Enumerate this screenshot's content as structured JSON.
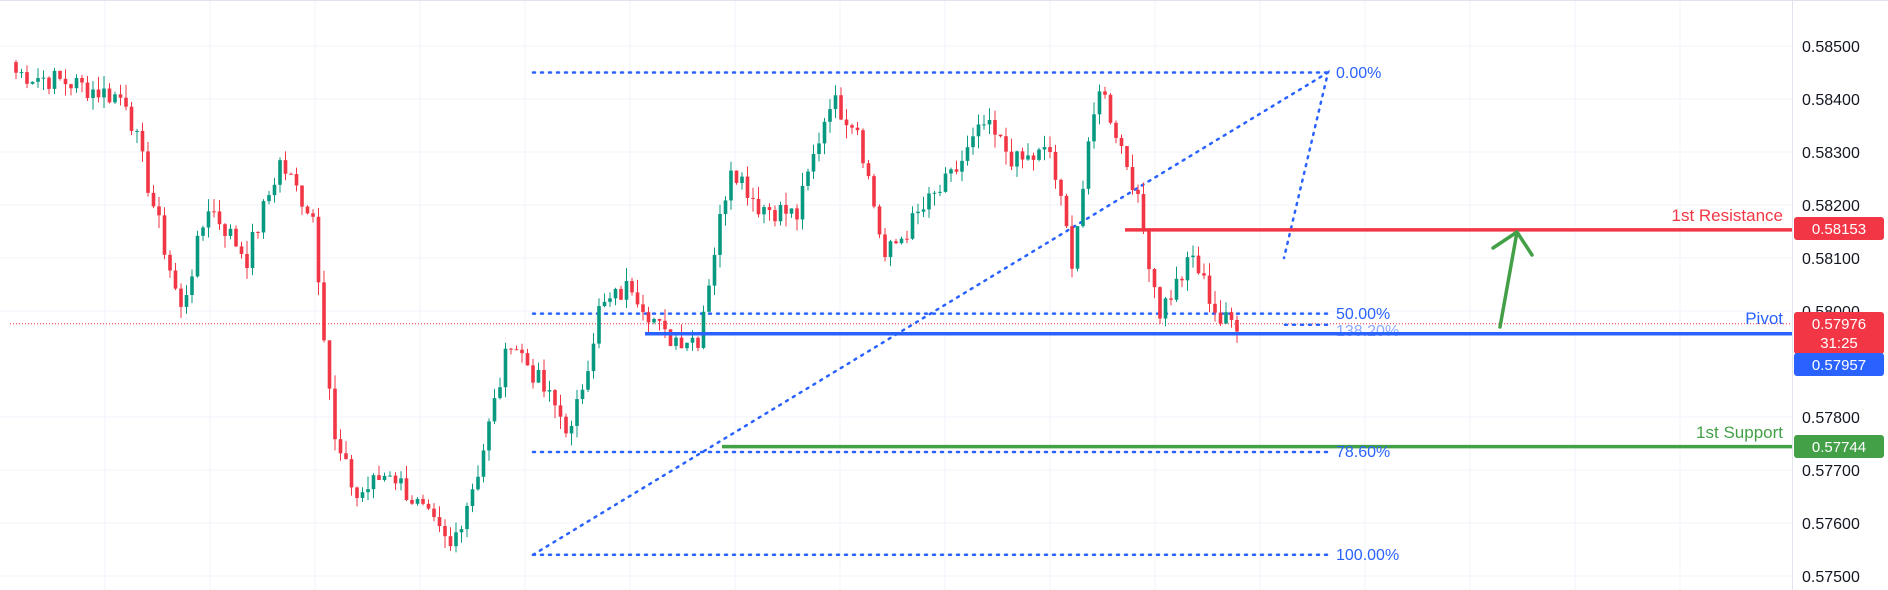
{
  "chart_data": {
    "type": "candlestick",
    "ylim": [
      0.575,
      0.586
    ],
    "yticks": [
      "0.58500",
      "0.58400",
      "0.58300",
      "0.58200",
      "0.58100",
      "0.58000",
      "0.57800",
      "0.57700",
      "0.57600",
      "0.57500"
    ],
    "grid": true,
    "price": {
      "value": "0.57976",
      "countdown": "31:25",
      "color": "#f23645"
    },
    "levels": [
      {
        "name": "1st Resistance",
        "value": 0.58153,
        "value_label": "0.58153",
        "color": "#f23645"
      },
      {
        "name": "Pivot",
        "value": 0.57957,
        "value_label": "0.57957",
        "color": "#2962ff"
      },
      {
        "name": "1st Support",
        "value": 0.57744,
        "value_label": "0.57744",
        "color": "#43a047"
      }
    ],
    "fibonacci": {
      "color": "#2962ff",
      "high": 0.5845,
      "low": 0.5754,
      "labels": [
        "0.00%",
        "50.00%",
        "138.20%",
        "78.60%",
        "100.00%"
      ]
    },
    "anchor_points": [
      {
        "bar": 0,
        "close": 0.5845
      },
      {
        "bar": 10,
        "close": 0.5843
      },
      {
        "bar": 20,
        "close": 0.584
      },
      {
        "bar": 30,
        "close": 0.58
      },
      {
        "bar": 35,
        "close": 0.582
      },
      {
        "bar": 42,
        "close": 0.581
      },
      {
        "bar": 48,
        "close": 0.5828
      },
      {
        "bar": 54,
        "close": 0.5818
      },
      {
        "bar": 58,
        "close": 0.5775
      },
      {
        "bar": 62,
        "close": 0.5765
      },
      {
        "bar": 68,
        "close": 0.577
      },
      {
        "bar": 74,
        "close": 0.5762
      },
      {
        "bar": 79,
        "close": 0.5755
      },
      {
        "bar": 84,
        "close": 0.577
      },
      {
        "bar": 90,
        "close": 0.5795
      },
      {
        "bar": 96,
        "close": 0.5785
      },
      {
        "bar": 101,
        "close": 0.5777
      },
      {
        "bar": 106,
        "close": 0.58
      },
      {
        "bar": 112,
        "close": 0.5805
      },
      {
        "bar": 118,
        "close": 0.5795
      },
      {
        "bar": 124,
        "close": 0.5795
      },
      {
        "bar": 130,
        "close": 0.5828
      },
      {
        "bar": 135,
        "close": 0.582
      },
      {
        "bar": 142,
        "close": 0.5818
      },
      {
        "bar": 148,
        "close": 0.584
      },
      {
        "bar": 153,
        "close": 0.5835
      },
      {
        "bar": 158,
        "close": 0.581
      },
      {
        "bar": 164,
        "close": 0.5818
      },
      {
        "bar": 170,
        "close": 0.5825
      },
      {
        "bar": 176,
        "close": 0.5835
      },
      {
        "bar": 182,
        "close": 0.5828
      },
      {
        "bar": 188,
        "close": 0.583
      },
      {
        "bar": 192,
        "close": 0.581
      },
      {
        "bar": 197,
        "close": 0.5843
      },
      {
        "bar": 203,
        "close": 0.5825
      },
      {
        "bar": 208,
        "close": 0.58
      },
      {
        "bar": 214,
        "close": 0.581
      },
      {
        "bar": 219,
        "close": 0.5798
      },
      {
        "bar": 222,
        "close": 0.5798
      }
    ]
  }
}
